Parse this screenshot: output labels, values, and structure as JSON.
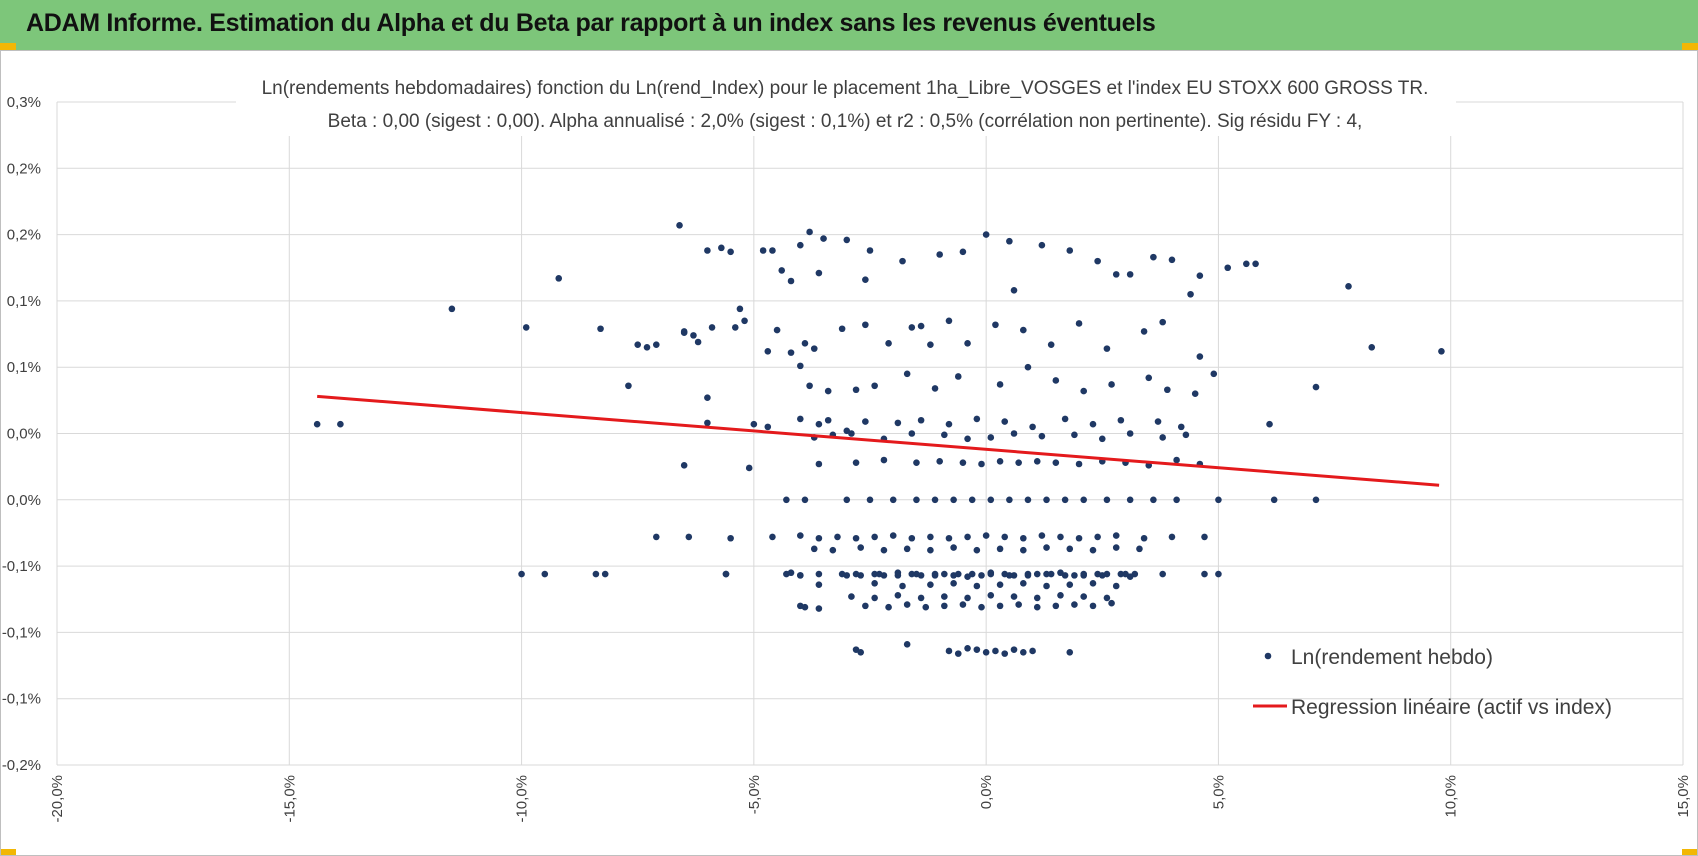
{
  "header": {
    "title": "ADAM Informe. Estimation du Alpha et du Beta par rapport à un index sans les revenus éventuels"
  },
  "colors": {
    "banner": "#7dc67a",
    "accent_corner": "#f2b705",
    "points": "#1f3864",
    "regression": "#e41a1c",
    "grid": "#d9d9d9"
  },
  "chart_data": {
    "type": "scatter",
    "title_line1": "Ln(rendements hebdomadaires) fonction du Ln(rend_Index) pour le placement 1ha_Libre_VOSGES et l'index EU STOXX 600 GROSS TR.",
    "title_line2": "Beta : 0,00 (sigest : 0,00).  Alpha annualisé : 2,0% (sigest : 0,1%) et r2 : 0,5% (corrélation non pertinente). Sig résidu FY : 4,",
    "xlim": [
      -0.2,
      0.15
    ],
    "ylim": [
      -0.002,
      0.003
    ],
    "x_ticks": [
      -0.2,
      -0.15,
      -0.1,
      -0.05,
      0.0,
      0.05,
      0.1,
      0.15
    ],
    "x_tick_labels": [
      "-20,0%",
      "-15,0%",
      "-10,0%",
      "-5,0%",
      "0,0%",
      "5,0%",
      "10,0%",
      "15,0%"
    ],
    "y_ticks": [
      0.003,
      0.0025,
      0.002,
      0.0015,
      0.001,
      0.0005,
      0.0,
      -0.0005,
      -0.001,
      -0.0015,
      -0.002
    ],
    "y_tick_labels": [
      "0,3%",
      "0,2%",
      "0,2%",
      "0,1%",
      "0,1%",
      "0,0%",
      "0,0%",
      "-0,1%",
      "-0,1%",
      "-0,1%",
      "-0,2%"
    ],
    "grid": true,
    "legend": {
      "placement": "bottom-right",
      "items": [
        "Ln(rendement hebdo)",
        "Regression linéaire (actif vs index)"
      ]
    },
    "regression_line": {
      "x": [
        -0.144,
        0.0975
      ],
      "y": [
        0.00078,
        0.00011
      ]
    },
    "series": [
      {
        "name": "Ln(rendement hebdo)",
        "x": [
          -0.144,
          -0.139,
          -0.115,
          -0.099,
          -0.092,
          -0.083,
          -0.066,
          -0.065,
          -0.075,
          -0.071,
          -0.063,
          -0.062,
          -0.059,
          -0.06,
          -0.057,
          -0.052,
          -0.055,
          -0.053,
          -0.048,
          -0.046,
          -0.095,
          -0.077,
          -0.06,
          -0.05,
          -0.045,
          -0.04,
          -0.036,
          -0.026,
          -0.014,
          0.006,
          0.028,
          0.046,
          0.049,
          0.061,
          0.071,
          0.078,
          0.083,
          0.098,
          0.058,
          0.056,
          -0.042,
          -0.044,
          -0.04,
          -0.038,
          -0.035,
          -0.03,
          -0.025,
          -0.018,
          -0.01,
          -0.005,
          0.0,
          0.005,
          0.012,
          0.018,
          0.024,
          0.031,
          0.036,
          0.04,
          0.044,
          0.052,
          -0.073,
          -0.065,
          -0.054,
          -0.047,
          -0.042,
          -0.039,
          -0.037,
          -0.031,
          -0.026,
          -0.021,
          -0.016,
          -0.012,
          -0.008,
          -0.004,
          0.002,
          0.008,
          0.014,
          0.02,
          0.026,
          0.034,
          0.038,
          0.046,
          -0.038,
          -0.034,
          -0.028,
          -0.024,
          -0.017,
          -0.011,
          -0.006,
          0.003,
          0.009,
          0.015,
          0.021,
          0.027,
          0.035,
          0.039,
          0.045,
          -0.06,
          -0.047,
          -0.04,
          -0.036,
          -0.034,
          -0.03,
          -0.026,
          -0.019,
          -0.014,
          -0.008,
          -0.002,
          0.004,
          0.01,
          0.017,
          0.023,
          0.029,
          0.037,
          0.042,
          -0.037,
          -0.033,
          -0.029,
          -0.022,
          -0.016,
          -0.009,
          -0.004,
          0.001,
          0.006,
          0.012,
          0.019,
          0.025,
          0.031,
          0.038,
          0.043,
          -0.065,
          -0.051,
          -0.036,
          -0.028,
          -0.022,
          -0.015,
          -0.01,
          -0.005,
          -0.001,
          0.003,
          0.007,
          0.011,
          0.015,
          0.02,
          0.025,
          0.03,
          0.035,
          0.041,
          0.046,
          -0.043,
          -0.039,
          -0.03,
          -0.025,
          -0.02,
          -0.015,
          -0.011,
          -0.007,
          -0.003,
          0.001,
          0.005,
          0.009,
          0.013,
          0.017,
          0.021,
          0.026,
          0.031,
          0.036,
          0.041,
          0.05,
          0.062,
          0.071,
          -0.071,
          -0.064,
          -0.055,
          -0.046,
          -0.04,
          -0.036,
          -0.032,
          -0.028,
          -0.024,
          -0.02,
          -0.016,
          -0.012,
          -0.008,
          -0.004,
          0.0,
          0.004,
          0.008,
          0.012,
          0.016,
          0.02,
          0.024,
          0.028,
          0.034,
          0.04,
          0.047,
          -0.037,
          -0.033,
          -0.027,
          -0.022,
          -0.017,
          -0.012,
          -0.007,
          -0.002,
          0.003,
          0.008,
          0.013,
          0.018,
          0.023,
          0.028,
          0.033,
          -0.042,
          -0.03,
          -0.024,
          -0.019,
          -0.014,
          -0.009,
          -0.004,
          0.001,
          0.006,
          0.011,
          0.016,
          0.021,
          0.026,
          0.031,
          -0.036,
          -0.024,
          -0.018,
          -0.012,
          -0.007,
          -0.002,
          0.003,
          0.008,
          0.013,
          0.018,
          0.023,
          0.028,
          -0.084,
          -0.082,
          -0.056,
          -0.043,
          -0.04,
          -0.036,
          -0.031,
          -0.027,
          -0.023,
          -0.019,
          -0.015,
          -0.011,
          -0.007,
          -0.003,
          0.001,
          0.005,
          0.009,
          0.013,
          0.017,
          0.021,
          0.025,
          0.029,
          0.032,
          -0.029,
          -0.024,
          -0.019,
          -0.014,
          -0.009,
          -0.004,
          0.001,
          0.006,
          0.011,
          0.016,
          0.021,
          0.026,
          -0.1,
          -0.056,
          -0.04,
          -0.028,
          -0.022,
          -0.016,
          -0.011,
          -0.006,
          -0.001,
          0.004,
          0.009,
          0.014,
          0.019,
          0.024,
          0.03,
          0.038,
          0.047,
          0.05,
          -0.04,
          -0.039,
          -0.036,
          -0.026,
          -0.021,
          -0.017,
          -0.013,
          -0.009,
          -0.005,
          -0.001,
          0.003,
          0.007,
          0.011,
          0.015,
          0.019,
          0.023,
          0.027,
          -0.028,
          -0.027,
          -0.017,
          -0.008,
          -0.006,
          -0.004,
          -0.002,
          0.0,
          0.002,
          0.004,
          0.006,
          0.008,
          0.01,
          0.018
        ],
        "y": [
          0.00057,
          0.00057,
          0.00144,
          0.0013,
          0.00167,
          0.00129,
          0.00207,
          0.00127,
          0.00117,
          0.00117,
          0.00124,
          0.00119,
          0.0013,
          0.00188,
          0.0019,
          0.00135,
          0.00187,
          0.00144,
          0.00188,
          0.00188,
          -0.00056,
          0.00086,
          0.00077,
          0.00057,
          0.00128,
          0.00101,
          0.00171,
          0.00166,
          0.00131,
          0.00158,
          0.0017,
          0.00169,
          0.00095,
          0.00057,
          0.00085,
          0.00161,
          0.00115,
          0.00112,
          0.00178,
          0.00178,
          0.00165,
          0.00173,
          0.00192,
          0.00202,
          0.00197,
          0.00196,
          0.00188,
          0.0018,
          0.00185,
          0.00187,
          0.002,
          0.00195,
          0.00192,
          0.00188,
          0.0018,
          0.0017,
          0.00183,
          0.00181,
          0.00155,
          0.00175,
          0.00115,
          0.00126,
          0.0013,
          0.00112,
          0.00111,
          0.00118,
          0.00114,
          0.00129,
          0.00132,
          0.00118,
          0.0013,
          0.00117,
          0.00135,
          0.00118,
          0.00132,
          0.00128,
          0.00117,
          0.00133,
          0.00114,
          0.00127,
          0.00134,
          0.00108,
          0.00086,
          0.00082,
          0.00083,
          0.00086,
          0.00095,
          0.00084,
          0.00093,
          0.00087,
          0.001,
          0.0009,
          0.00082,
          0.00087,
          0.00092,
          0.00083,
          0.0008,
          0.00058,
          0.00055,
          0.00061,
          0.00057,
          0.0006,
          0.00052,
          0.00059,
          0.00058,
          0.0006,
          0.00057,
          0.00061,
          0.00059,
          0.00055,
          0.00061,
          0.00057,
          0.0006,
          0.00059,
          0.00055,
          0.00047,
          0.00049,
          0.0005,
          0.00046,
          0.0005,
          0.00049,
          0.00046,
          0.00047,
          0.0005,
          0.00048,
          0.00049,
          0.00046,
          0.0005,
          0.00047,
          0.00049,
          0.00026,
          0.00024,
          0.00027,
          0.00028,
          0.0003,
          0.00028,
          0.00029,
          0.00028,
          0.00027,
          0.00029,
          0.00028,
          0.00029,
          0.00028,
          0.00027,
          0.00029,
          0.00028,
          0.00026,
          0.0003,
          0.00027,
          0.0,
          0.0,
          0.0,
          0.0,
          0.0,
          0.0,
          0.0,
          0.0,
          0.0,
          0.0,
          0.0,
          0.0,
          0.0,
          0.0,
          0.0,
          0.0,
          0.0,
          0.0,
          0.0,
          0.0,
          0.0,
          0.0,
          -0.00028,
          -0.00028,
          -0.00029,
          -0.00028,
          -0.00027,
          -0.00029,
          -0.00028,
          -0.00029,
          -0.00028,
          -0.00027,
          -0.00029,
          -0.00028,
          -0.00029,
          -0.00028,
          -0.00027,
          -0.00028,
          -0.00029,
          -0.00027,
          -0.00028,
          -0.00029,
          -0.00028,
          -0.00027,
          -0.00029,
          -0.00028,
          -0.00028,
          -0.00037,
          -0.00038,
          -0.00036,
          -0.00038,
          -0.00037,
          -0.00038,
          -0.00036,
          -0.00038,
          -0.00037,
          -0.00038,
          -0.00036,
          -0.00037,
          -0.00038,
          -0.00036,
          -0.00037,
          -0.00055,
          -0.00057,
          -0.00056,
          -0.00055,
          -0.00057,
          -0.00056,
          -0.00058,
          -0.00055,
          -0.00057,
          -0.00056,
          -0.00055,
          -0.00057,
          -0.00056,
          -0.00058,
          -0.00064,
          -0.00063,
          -0.00065,
          -0.00064,
          -0.00063,
          -0.00065,
          -0.00064,
          -0.00063,
          -0.00065,
          -0.00064,
          -0.00063,
          -0.00065,
          -0.00056,
          -0.00056,
          -0.00056,
          -0.00056,
          -0.00057,
          -0.00056,
          -0.00056,
          -0.00057,
          -0.00056,
          -0.00057,
          -0.00056,
          -0.00056,
          -0.00057,
          -0.00056,
          -0.00056,
          -0.00057,
          -0.00056,
          -0.00056,
          -0.00057,
          -0.00056,
          -0.00057,
          -0.00056,
          -0.00056,
          -0.00073,
          -0.00074,
          -0.00072,
          -0.00074,
          -0.00073,
          -0.00074,
          -0.00072,
          -0.00073,
          -0.00074,
          -0.00072,
          -0.00073,
          -0.00074,
          -0.00056,
          -0.00056,
          -0.00057,
          -0.00056,
          -0.00057,
          -0.00056,
          -0.00057,
          -0.00056,
          -0.00057,
          -0.00056,
          -0.00057,
          -0.00056,
          -0.00057,
          -0.00056,
          -0.00056,
          -0.00056,
          -0.00056,
          -0.00056,
          -0.0008,
          -0.00081,
          -0.00082,
          -0.0008,
          -0.00081,
          -0.00079,
          -0.00081,
          -0.0008,
          -0.00079,
          -0.00081,
          -0.0008,
          -0.00079,
          -0.00081,
          -0.0008,
          -0.00079,
          -0.0008,
          -0.00078,
          -0.00113,
          -0.00115,
          -0.00109,
          -0.00114,
          -0.00116,
          -0.00112,
          -0.00113,
          -0.00115,
          -0.00114,
          -0.00116,
          -0.00113,
          -0.00115,
          -0.00114,
          -0.00115
        ]
      }
    ]
  }
}
